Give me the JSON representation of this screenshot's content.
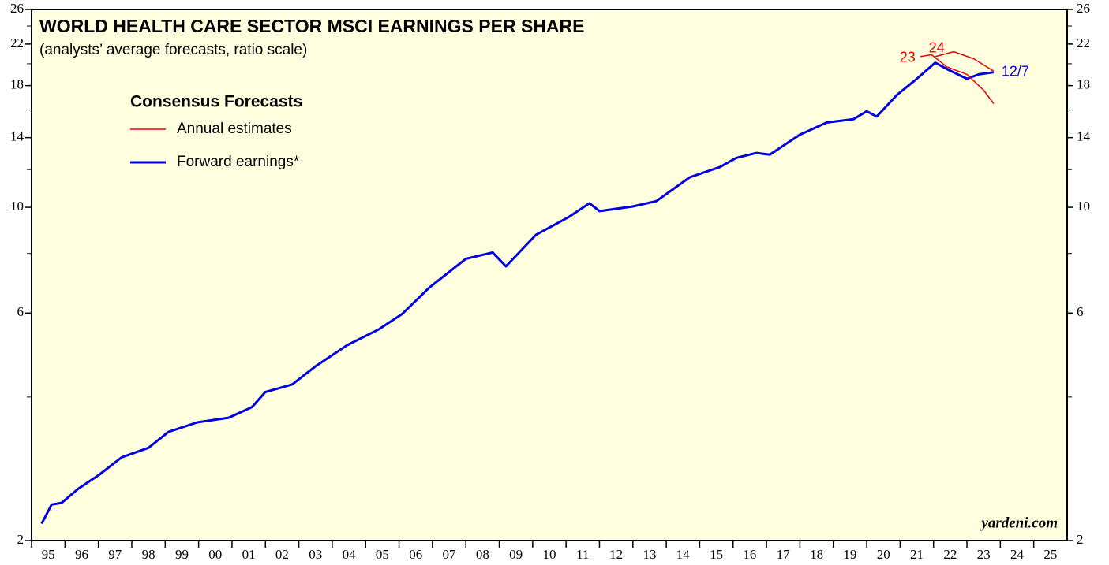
{
  "chart_data": {
    "type": "line",
    "title": "WORLD HEALTH CARE SECTOR MSCI EARNINGS PER SHARE",
    "subtitle": "(analysts’ average forecasts, ratio scale)",
    "source": "yardeni.com",
    "log_scale": true,
    "xlim": [
      1995,
      2026
    ],
    "xticks": [
      {
        "value": 1995,
        "label": "95"
      },
      {
        "value": 1996,
        "label": "96"
      },
      {
        "value": 1997,
        "label": "97"
      },
      {
        "value": 1998,
        "label": "98"
      },
      {
        "value": 1999,
        "label": "99"
      },
      {
        "value": 2000,
        "label": "00"
      },
      {
        "value": 2001,
        "label": "01"
      },
      {
        "value": 2002,
        "label": "02"
      },
      {
        "value": 2003,
        "label": "03"
      },
      {
        "value": 2004,
        "label": "04"
      },
      {
        "value": 2005,
        "label": "05"
      },
      {
        "value": 2006,
        "label": "06"
      },
      {
        "value": 2007,
        "label": "07"
      },
      {
        "value": 2008,
        "label": "08"
      },
      {
        "value": 2009,
        "label": "09"
      },
      {
        "value": 2010,
        "label": "10"
      },
      {
        "value": 2011,
        "label": "11"
      },
      {
        "value": 2012,
        "label": "12"
      },
      {
        "value": 2013,
        "label": "13"
      },
      {
        "value": 2014,
        "label": "14"
      },
      {
        "value": 2015,
        "label": "15"
      },
      {
        "value": 2016,
        "label": "16"
      },
      {
        "value": 2017,
        "label": "17"
      },
      {
        "value": 2018,
        "label": "18"
      },
      {
        "value": 2019,
        "label": "19"
      },
      {
        "value": 2020,
        "label": "20"
      },
      {
        "value": 2021,
        "label": "21"
      },
      {
        "value": 2022,
        "label": "22"
      },
      {
        "value": 2023,
        "label": "23"
      },
      {
        "value": 2024,
        "label": "24"
      },
      {
        "value": 2025,
        "label": "25"
      }
    ],
    "ylim": [
      2,
      26
    ],
    "yticks": [
      2,
      6,
      10,
      14,
      18,
      22,
      26
    ],
    "yticks_minor": [
      4,
      8,
      12,
      16,
      20,
      24
    ],
    "legend": {
      "title": "Consensus Forecasts",
      "entries": [
        {
          "label": "Annual estimates",
          "color": "#e80000",
          "width": 1.5
        },
        {
          "label": "Forward earnings*",
          "color": "#0000e0",
          "width": 3
        }
      ]
    },
    "series": [
      {
        "label": "12/7",
        "color": "#0000e0",
        "width": 3,
        "x": [
          1995.3,
          1995.6,
          1995.9,
          1996.4,
          1997.0,
          1997.7,
          1998.5,
          1999.1,
          1999.96,
          2000.9,
          2001.6,
          2002.0,
          2002.8,
          2003.5,
          2004.45,
          2005.4,
          2006.1,
          2006.9,
          2008.0,
          2008.8,
          2009.2,
          2010.1,
          2011.1,
          2011.7,
          2012.0,
          2013.0,
          2013.7,
          2014.7,
          2015.6,
          2016.1,
          2016.7,
          2017.1,
          2018.0,
          2018.8,
          2019.6,
          2020.0,
          2020.3,
          2020.9,
          2021.5,
          2022.05,
          2022.4,
          2023.0,
          2023.35,
          2023.8
        ],
        "values": [
          2.17,
          2.38,
          2.4,
          2.57,
          2.74,
          2.99,
          3.13,
          3.38,
          3.54,
          3.62,
          3.81,
          4.1,
          4.25,
          4.64,
          5.14,
          5.55,
          5.98,
          6.78,
          7.8,
          8.04,
          7.52,
          8.76,
          9.56,
          10.2,
          9.82,
          10.04,
          10.3,
          11.56,
          12.14,
          12.7,
          13.0,
          12.9,
          14.2,
          15.06,
          15.3,
          15.9,
          15.5,
          17.2,
          18.6,
          20.1,
          19.5,
          18.6,
          19.0,
          19.2
        ]
      },
      {
        "label": "23",
        "color": "#e80000",
        "width": 1.5,
        "x": [
          2021.6,
          2021.94,
          2022.4,
          2023.0,
          2023.5,
          2023.8
        ],
        "values": [
          20.7,
          20.9,
          19.7,
          19.0,
          17.6,
          16.5
        ]
      },
      {
        "label": "24",
        "color": "#e80000",
        "width": 1.5,
        "x": [
          2022.05,
          2022.6,
          2023.2,
          2023.8
        ],
        "values": [
          20.7,
          21.2,
          20.5,
          19.3
        ]
      }
    ]
  }
}
